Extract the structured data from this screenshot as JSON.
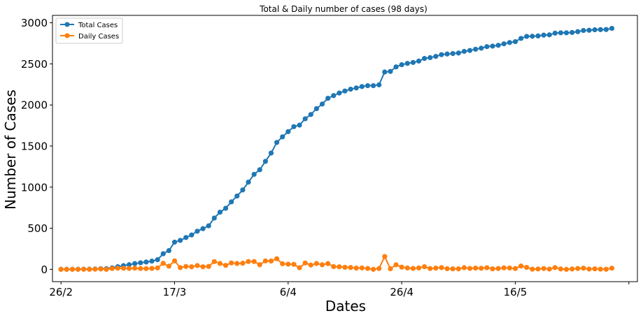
{
  "chart_data": {
    "type": "line",
    "title": "Total & Daily number of cases (98 days)",
    "xlabel": "Dates",
    "ylabel": "Number of Cases",
    "x_tick_labels": [
      {
        "label": "26/2",
        "day": 0
      },
      {
        "label": "17/3",
        "day": 20
      },
      {
        "label": "6/4",
        "day": 40
      },
      {
        "label": "26/4",
        "day": 60
      },
      {
        "label": "16/5",
        "day": 80
      }
    ],
    "x_minor_tick_day": 100,
    "y_ticks": [
      0,
      500,
      1000,
      1500,
      2000,
      2500,
      3000
    ],
    "xlim": [
      -1.5,
      101.5
    ],
    "ylim": [
      -150,
      3090
    ],
    "legend": "top-left",
    "grid": false,
    "series": [
      {
        "name": "Total Cases",
        "color": "#1f77b4",
        "values": [
          1,
          1,
          1,
          1,
          2,
          2,
          4,
          8,
          8,
          18,
          32,
          45,
          56,
          70,
          80,
          89,
          100,
          117,
          190,
          228,
          331,
          352,
          387,
          418,
          464,
          495,
          530,
          624,
          695,
          743,
          821,
          892,
          966,
          1061,
          1156,
          1212,
          1314,
          1415,
          1544,
          1612,
          1675,
          1736,
          1755,
          1832,
          1884,
          1955,
          2011,
          2081,
          2114,
          2145,
          2170,
          2192,
          2207,
          2224,
          2235,
          2235,
          2245,
          2401,
          2408,
          2463,
          2490,
          2506,
          2517,
          2534,
          2566,
          2576,
          2591,
          2612,
          2620,
          2626,
          2632,
          2652,
          2663,
          2678,
          2691,
          2710,
          2716,
          2726,
          2744,
          2760,
          2770,
          2810,
          2834,
          2836,
          2840,
          2850,
          2853,
          2874,
          2878,
          2878,
          2882,
          2892,
          2906,
          2909,
          2915,
          2917,
          2918,
          2932
        ]
      },
      {
        "name": "Daily Cases",
        "color": "#ff7f0e",
        "values": [
          0,
          0,
          0,
          0,
          1,
          0,
          2,
          4,
          0,
          10,
          14,
          13,
          11,
          14,
          10,
          9,
          11,
          17,
          73,
          38,
          103,
          21,
          35,
          31,
          46,
          31,
          35,
          94,
          71,
          48,
          78,
          71,
          74,
          95,
          95,
          56,
          102,
          101,
          129,
          68,
          63,
          61,
          19,
          77,
          52,
          71,
          56,
          70,
          33,
          31,
          25,
          22,
          15,
          17,
          11,
          0,
          10,
          156,
          7,
          55,
          27,
          16,
          11,
          17,
          32,
          10,
          15,
          21,
          8,
          6,
          6,
          20,
          11,
          15,
          13,
          19,
          6,
          10,
          18,
          16,
          10,
          40,
          24,
          2,
          4,
          10,
          3,
          21,
          4,
          0,
          4,
          10,
          14,
          3,
          6,
          2,
          1,
          14
        ]
      }
    ]
  }
}
